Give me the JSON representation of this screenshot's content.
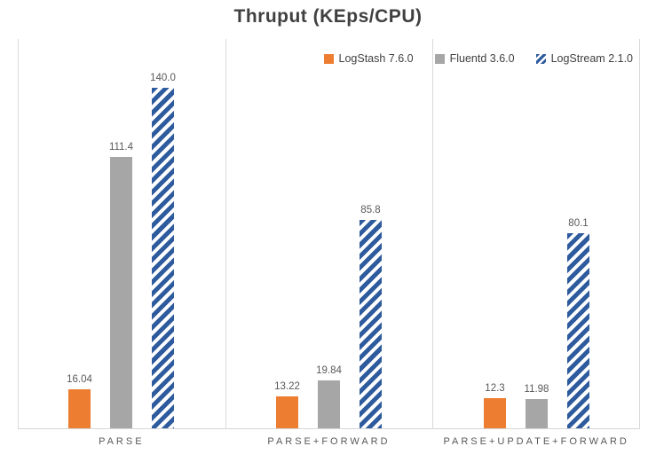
{
  "title": "Thruput (KEps/CPU)",
  "colors": {
    "logstash_orange": "#ED7D31",
    "fluentd_gray": "#A6A6A6",
    "logstream_blue": "#2E5B9E",
    "grid_line": "#D9D9D9",
    "title_text": "#404040",
    "label_text": "#595959"
  },
  "chart_data": {
    "type": "bar",
    "title": "Thruput (KEps/CPU)",
    "categories": [
      "PARSE",
      "PARSE+FORWARD",
      "PARSE+UPDATE+FORWARD"
    ],
    "series": [
      {
        "name": "LogStash 7.6.0",
        "color": "#ED7D31",
        "fill": "solid",
        "values": [
          16.04,
          13.22,
          12.3
        ],
        "labels": [
          "16.04",
          "13.22",
          "12.3"
        ]
      },
      {
        "name": "Fluentd 3.6.0",
        "color": "#A6A6A6",
        "fill": "solid",
        "values": [
          111.4,
          19.84,
          11.98
        ],
        "labels": [
          "111.4",
          "19.84",
          "11.98"
        ]
      },
      {
        "name": "LogStream 2.1.0",
        "color": "#2E5B9E",
        "fill": "diagonal-hatch",
        "values": [
          140.0,
          85.8,
          80.1
        ],
        "labels": [
          "140.0",
          "85.8",
          "80.1"
        ]
      }
    ],
    "xlabel": "",
    "ylabel": "",
    "ylim": [
      0,
      160
    ],
    "y_axis_visible": false,
    "grid": "vertical-category-separators",
    "legend_position": "top-right"
  }
}
